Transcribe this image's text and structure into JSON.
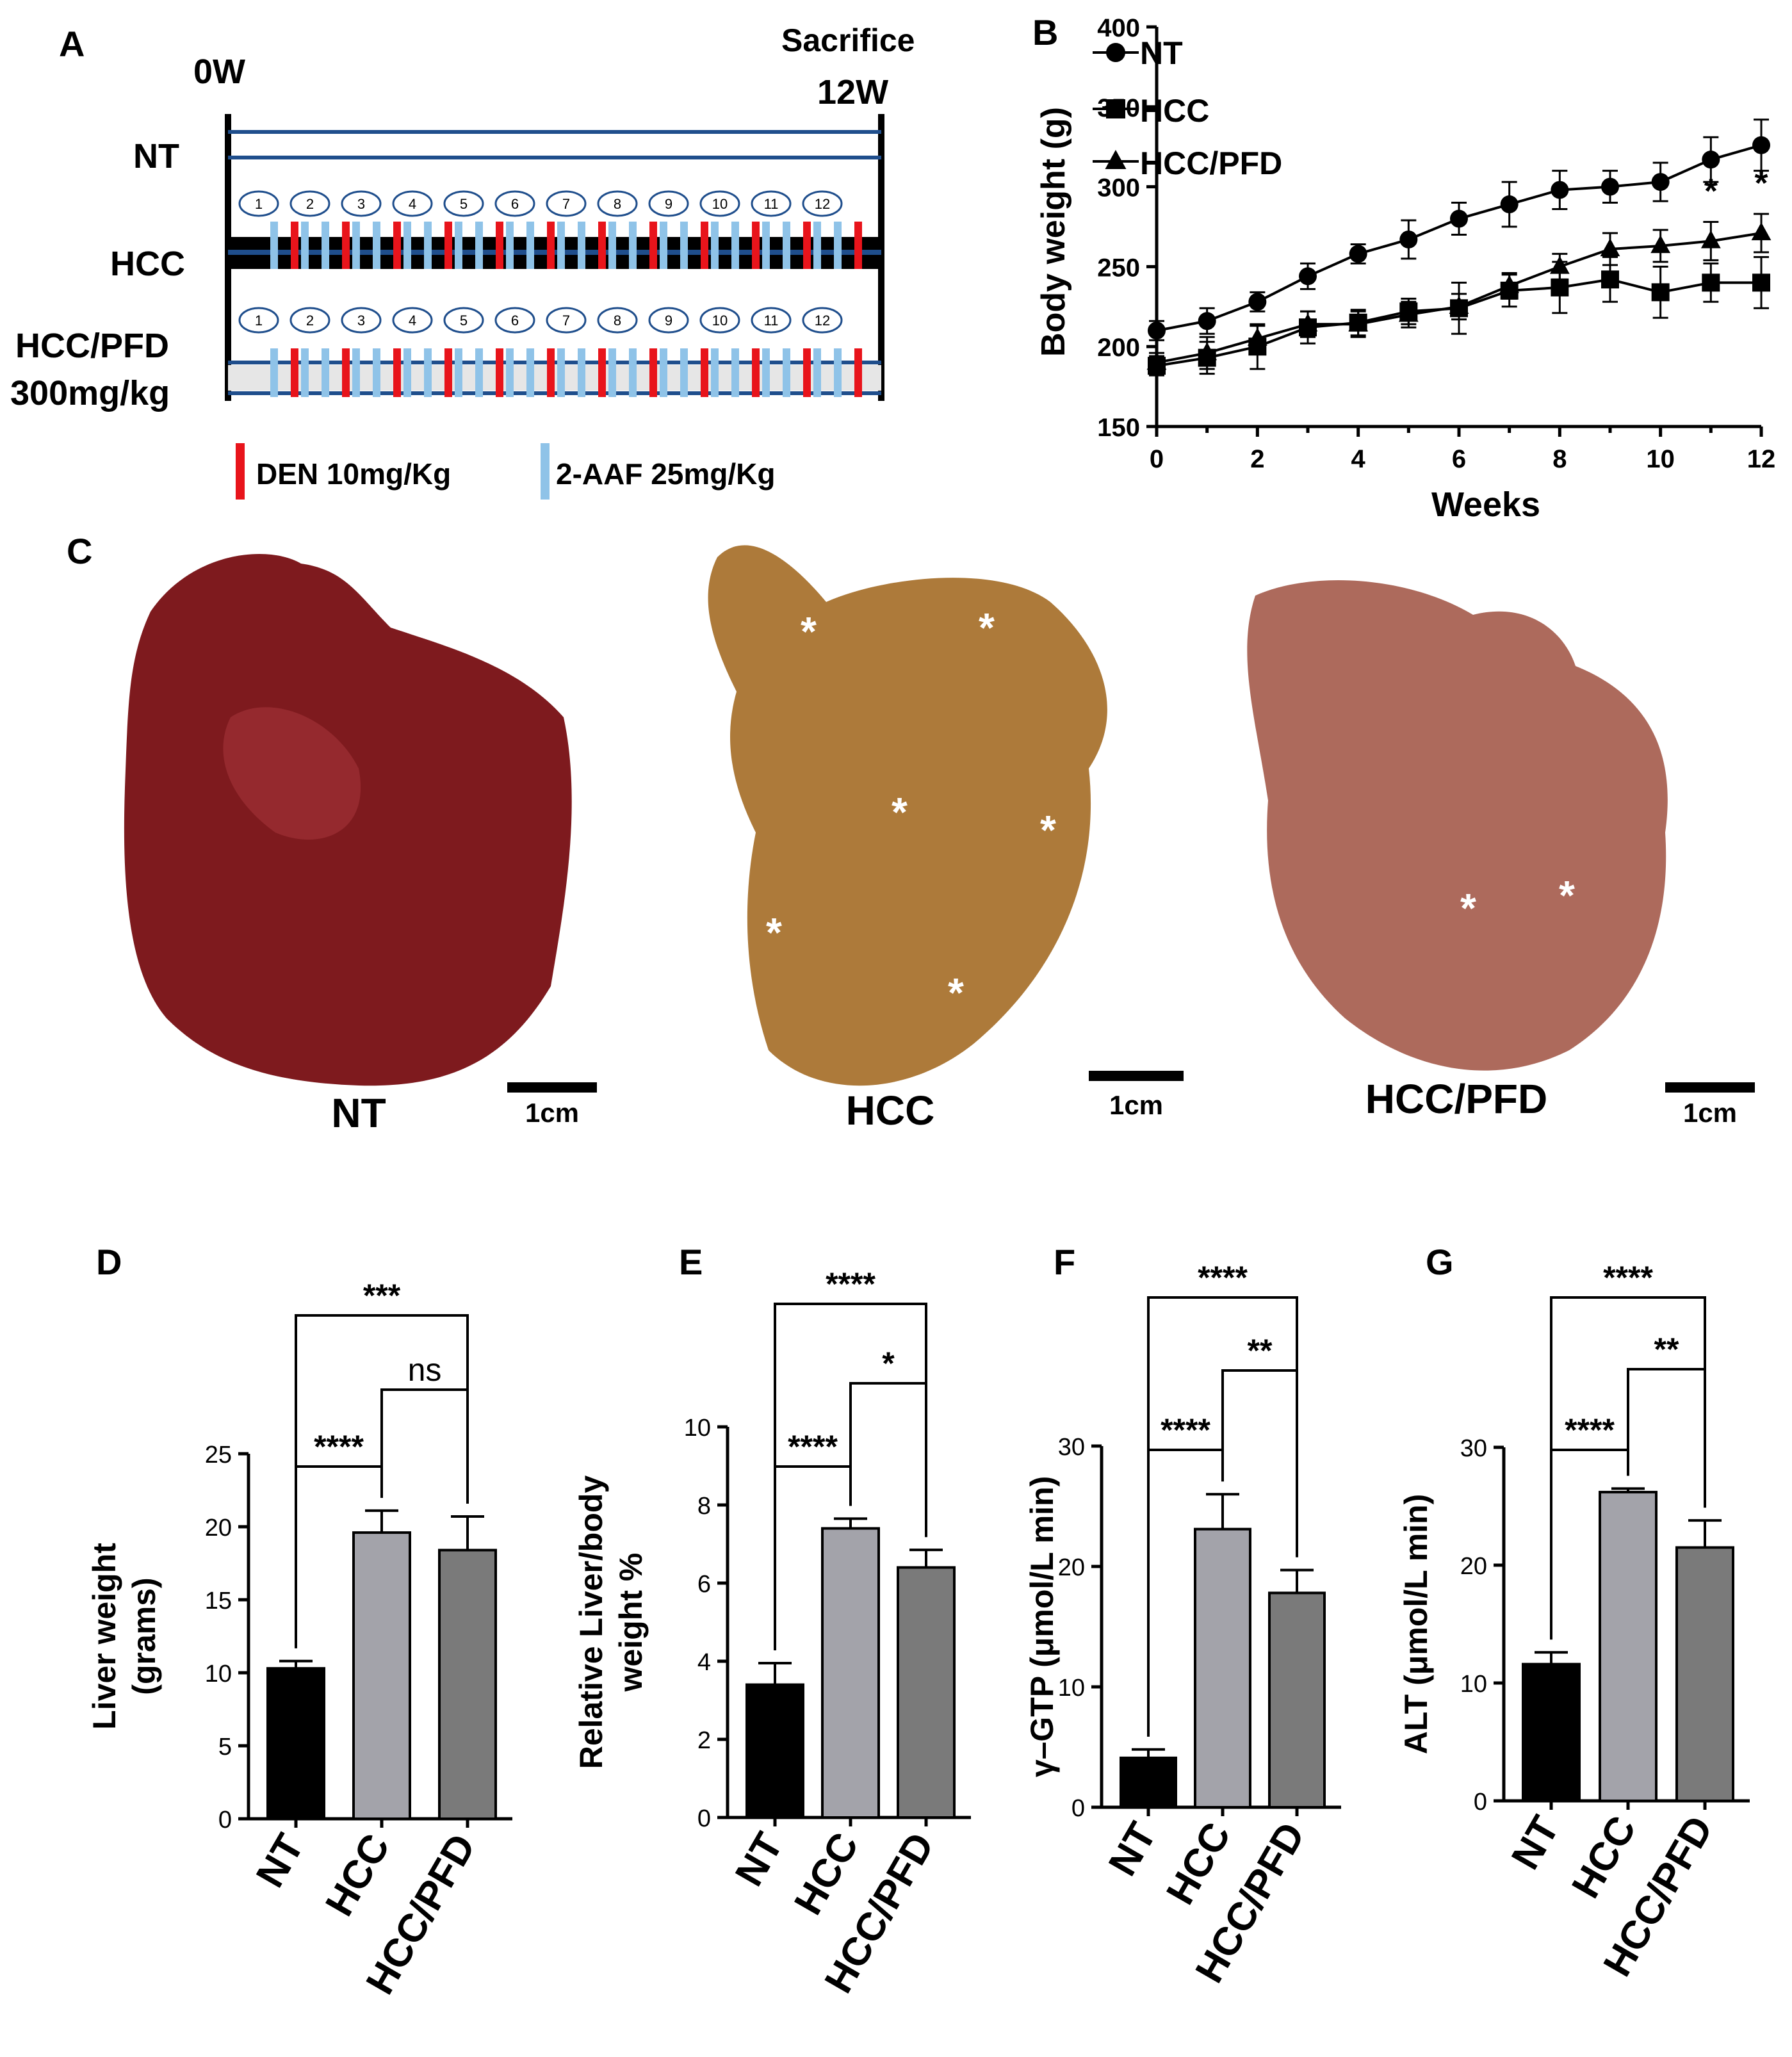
{
  "panel_letters": {
    "a": "A",
    "b": "B",
    "c": "C",
    "d": "D",
    "e": "E",
    "f": "F",
    "g": "G"
  },
  "panelA": {
    "start_label": "0W",
    "end_label_1": "Sacrifice",
    "end_label_2": "12W",
    "groups": [
      "NT",
      "HCC",
      "HCC/PFD",
      "300mg/kg"
    ],
    "week_numbers": [
      "1",
      "2",
      "3",
      "4",
      "5",
      "6",
      "7",
      "8",
      "9",
      "10",
      "11",
      "12"
    ],
    "legend_den": "DEN 10mg/Kg",
    "legend_aaf": "2-AAF 25mg/Kg",
    "colors": {
      "den": "#e8141b",
      "aaf": "#8fc3e8",
      "line": "#1f4e8c"
    }
  },
  "panelC": {
    "labels": [
      "NT",
      "HCC",
      "HCC/PFD"
    ],
    "scale_label": "1cm",
    "asterisk": "*"
  },
  "chart_data": [
    {
      "panel": "B",
      "type": "line",
      "xlabel": "Weeks",
      "ylabel": "Body weight (g)",
      "xlim": [
        0,
        12
      ],
      "ylim": [
        150,
        400
      ],
      "xticks": [
        "0",
        "2",
        "4",
        "6",
        "8",
        "10",
        "12"
      ],
      "yticks": [
        "150",
        "200",
        "250",
        "300",
        "350",
        "400"
      ],
      "x": [
        0,
        1,
        2,
        3,
        4,
        5,
        6,
        7,
        8,
        9,
        10,
        11,
        12
      ],
      "series": [
        {
          "name": "NT",
          "marker": "circle",
          "values": [
            210,
            216,
            228,
            244,
            258,
            267,
            280,
            289,
            298,
            300,
            303,
            317,
            326
          ],
          "err": [
            6,
            8,
            6,
            8,
            6,
            12,
            10,
            14,
            12,
            10,
            12,
            14,
            16
          ]
        },
        {
          "name": "HCC",
          "marker": "square",
          "values": [
            188,
            193,
            200,
            212,
            215,
            222,
            224,
            235,
            237,
            242,
            234,
            240,
            240
          ],
          "err": [
            6,
            10,
            14,
            10,
            8,
            8,
            16,
            10,
            16,
            14,
            16,
            12,
            16
          ]
        },
        {
          "name": "HCC/PFD",
          "marker": "triangle",
          "values": [
            190,
            196,
            205,
            214,
            214,
            220,
            225,
            238,
            250,
            261,
            263,
            266,
            271
          ],
          "err": [
            6,
            10,
            8,
            8,
            8,
            8,
            8,
            8,
            8,
            10,
            10,
            12,
            12
          ]
        }
      ],
      "legend_position": "top-left",
      "annotations": [
        "*",
        "*"
      ]
    },
    {
      "panel": "D",
      "type": "bar",
      "ylabel": "Liver weight (grams)",
      "ylabel_line1": "Liver weight",
      "ylabel_line2": "(grams)",
      "categories": [
        "NT",
        "HCC",
        "HCC/PFD"
      ],
      "values": [
        10.3,
        19.6,
        18.4
      ],
      "err": [
        0.5,
        1.5,
        2.3
      ],
      "ylim": [
        0,
        25
      ],
      "yticks": [
        "0",
        "5",
        "10",
        "15",
        "20",
        "25"
      ],
      "colors": [
        "#000000",
        "#a3a3aa",
        "#7a7a7a"
      ],
      "significance": [
        "****",
        "ns",
        "***"
      ]
    },
    {
      "panel": "E",
      "type": "bar",
      "ylabel": "Relative Liver/body weight %",
      "ylabel_line1": "Relative Liver/body",
      "ylabel_line2": "weight %",
      "categories": [
        "NT",
        "HCC",
        "HCC/PFD"
      ],
      "values": [
        3.4,
        7.4,
        6.4
      ],
      "err": [
        0.55,
        0.25,
        0.45
      ],
      "ylim": [
        0,
        10
      ],
      "yticks": [
        "0",
        "2",
        "4",
        "6",
        "8",
        "10"
      ],
      "colors": [
        "#000000",
        "#a3a3aa",
        "#7a7a7a"
      ],
      "significance": [
        "****",
        "*",
        "****"
      ]
    },
    {
      "panel": "F",
      "type": "bar",
      "ylabel": "γ–GTP (μmol/L min)",
      "categories": [
        "NT",
        "HCC",
        "HCC/PFD"
      ],
      "values": [
        4.1,
        23.1,
        17.8
      ],
      "err": [
        0.7,
        2.9,
        1.9
      ],
      "ylim": [
        0,
        30
      ],
      "yticks": [
        "0",
        "10",
        "20",
        "30"
      ],
      "colors": [
        "#000000",
        "#a3a3aa",
        "#7a7a7a"
      ],
      "significance": [
        "****",
        "**",
        "****"
      ]
    },
    {
      "panel": "G",
      "type": "bar",
      "ylabel": "ALT (μmol/L min)",
      "categories": [
        "NT",
        "HCC",
        "HCC/PFD"
      ],
      "values": [
        11.6,
        26.2,
        21.5
      ],
      "err": [
        1.0,
        0.3,
        2.3
      ],
      "ylim": [
        0,
        30
      ],
      "yticks": [
        "0",
        "10",
        "20",
        "30"
      ],
      "colors": [
        "#000000",
        "#a3a3aa",
        "#7a7a7a"
      ],
      "significance": [
        "****",
        "**",
        "****"
      ]
    }
  ]
}
